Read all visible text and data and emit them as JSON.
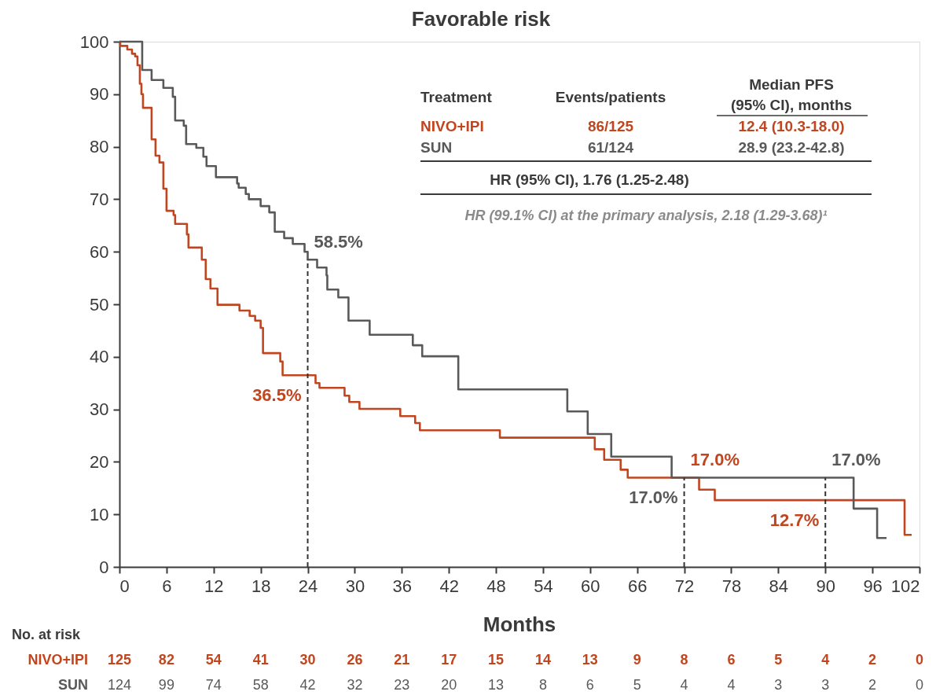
{
  "chart_data": {
    "type": "step",
    "title": "Favorable risk",
    "xlabel": "Months",
    "xlim": [
      0,
      102
    ],
    "xticks": [
      0,
      6,
      12,
      18,
      24,
      30,
      36,
      42,
      48,
      54,
      60,
      66,
      72,
      78,
      84,
      90,
      96,
      102
    ],
    "ylim": [
      0,
      100
    ],
    "yticks": [
      0,
      10,
      20,
      30,
      40,
      50,
      60,
      70,
      80,
      90,
      100
    ],
    "grid": false,
    "legend": false,
    "line_style": "solid",
    "marker": "none",
    "series": [
      {
        "name": "NIVO+IPI",
        "color": "#c1461f",
        "x": [
          0,
          0.1,
          1.0,
          1.6,
          2.0,
          2.3,
          2.6,
          2.8,
          3.0,
          4.1,
          4.6,
          5.1,
          5.6,
          6.0,
          6.9,
          7.1,
          8.6,
          8.8,
          10.5,
          11,
          11.6,
          12.5,
          15.3,
          16.6,
          17.3,
          18,
          18.3,
          20.5,
          20.8,
          25,
          25.5,
          28.7,
          29.3,
          30.6,
          35.8,
          37.7,
          38.3,
          48.5,
          60.6,
          61.8,
          63.9,
          64.8,
          73.9,
          75.9,
          100.1,
          101
        ],
        "values": [
          100,
          99.2,
          98.5,
          97.7,
          97.2,
          95.5,
          92,
          90,
          87.4,
          81.4,
          78.3,
          77,
          72,
          67.8,
          67,
          65.3,
          63.3,
          60.8,
          58.5,
          54.8,
          53,
          49.9,
          48.8,
          47.8,
          46.9,
          45.5,
          40.7,
          39.1,
          36.5,
          35,
          34.1,
          32.6,
          31.4,
          30.1,
          28.7,
          27.4,
          26,
          24.6,
          22.4,
          20.4,
          18.5,
          17,
          14.7,
          12.7,
          6.1,
          6.1
        ]
      },
      {
        "name": "SUN",
        "color": "#595959",
        "x": [
          0,
          2.9,
          4.1,
          5.6,
          6.8,
          7.1,
          8.2,
          8.5,
          9.8,
          10.7,
          11.1,
          12.3,
          15.0,
          15.2,
          16.1,
          16.5,
          18.0,
          19.1,
          19.8,
          21,
          22.1,
          23.6,
          24,
          25.2,
          26.4,
          26.5,
          27.9,
          29.2,
          31.9,
          37.4,
          38.6,
          43.2,
          57.1,
          59.7,
          62.7,
          70.4,
          93.6,
          96.6,
          97.8
        ],
        "values": [
          100,
          94.6,
          92.7,
          91.2,
          89.5,
          85,
          84,
          80.5,
          79.8,
          78.1,
          76.3,
          74.2,
          73,
          72.2,
          71,
          70,
          68.7,
          67.5,
          63.8,
          62.6,
          61.5,
          60,
          58.5,
          57,
          55.5,
          52.8,
          51.3,
          46.9,
          44.2,
          42.2,
          40.1,
          33.8,
          29.6,
          25.3,
          21,
          17,
          11.1,
          5.5,
          5.5
        ]
      }
    ],
    "ref_lines": [
      {
        "axis": "x",
        "value": 24,
        "color": "#333333",
        "line_style": "dashed"
      },
      {
        "axis": "x",
        "value": 72,
        "color": "#333333",
        "line_style": "dashed"
      },
      {
        "axis": "x",
        "value": 90,
        "color": "#333333",
        "line_style": "dashed"
      }
    ],
    "annotations": [
      "Treatment",
      "Events/patients",
      "Median PFS",
      "(95% CI), months",
      "86/125",
      "12.4 (10.3-18.0)",
      "61/124",
      "28.9 (23.2-42.8)",
      "HR (95% CI), 1.76 (1.25-2.48)",
      "HR (99.1% CI) at the primary analysis, 2.18 (1.29-3.68)¹",
      "No. at risk",
      {
        "text": "58.5%",
        "x": 24,
        "y": 58.5
      },
      {
        "text": "36.5%",
        "x": 24,
        "y": 36.5
      },
      {
        "text": "17.0%",
        "x": 72,
        "y": 17
      },
      {
        "text": "17.0%",
        "x": 72,
        "y": 17
      },
      {
        "text": "17.0%",
        "x": 90,
        "y": 17
      },
      {
        "text": "12.7%",
        "x": 90,
        "y": 12.7
      },
      "125",
      "82",
      "54",
      "41",
      "30",
      "26",
      "21",
      "17",
      "15",
      "14",
      "13",
      "9",
      "8",
      "6",
      "5",
      "4",
      "2",
      "0",
      "124",
      "99",
      "74",
      "58",
      "42",
      "32",
      "23",
      "20",
      "13",
      "8",
      "6",
      "5",
      "4",
      "4",
      "3",
      "3",
      "2",
      "0"
    ]
  }
}
